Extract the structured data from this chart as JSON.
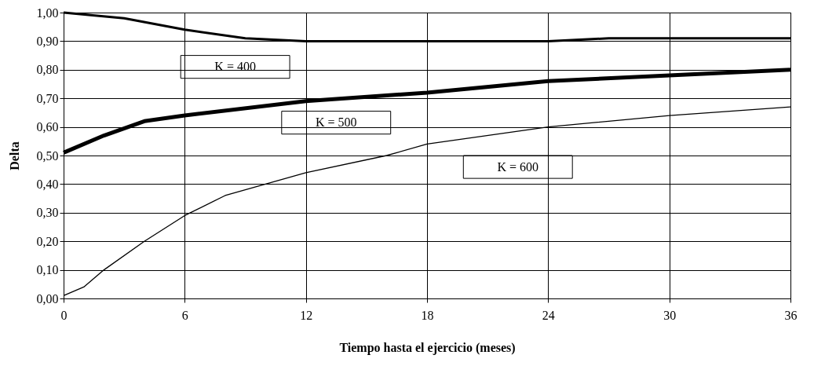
{
  "chart_data": {
    "type": "line",
    "xlabel": "Tiempo hasta el ejercicio (meses)",
    "ylabel": "Delta",
    "xlim": [
      0,
      36
    ],
    "xticks": [
      0,
      6,
      12,
      18,
      24,
      30,
      36
    ],
    "ylim": [
      0,
      1
    ],
    "yticks": [
      {
        "value": 0,
        "label": "0,00"
      },
      {
        "value": 0.1,
        "label": "0,10"
      },
      {
        "value": 0.2,
        "label": "0,20"
      },
      {
        "value": 0.3,
        "label": "0,30"
      },
      {
        "value": 0.4,
        "label": "0,40"
      },
      {
        "value": 0.5,
        "label": "0,50"
      },
      {
        "value": 0.6,
        "label": "0,60"
      },
      {
        "value": 0.7,
        "label": "0,70"
      },
      {
        "value": 0.8,
        "label": "0,80"
      },
      {
        "value": 0.9,
        "label": "0,90"
      },
      {
        "value": 1,
        "label": "1,00"
      }
    ],
    "grid": true,
    "marker": "none",
    "line_style": "solid",
    "series": [
      {
        "name": "K = 400",
        "color": "#000000",
        "x": [
          0,
          3,
          6,
          9,
          12,
          18,
          24,
          27,
          36
        ],
        "values": [
          1.0,
          0.98,
          0.94,
          0.91,
          0.9,
          0.9,
          0.9,
          0.91,
          0.91
        ]
      },
      {
        "name": "K = 500",
        "color": "#000000",
        "x": [
          0,
          2,
          4,
          6,
          12,
          18,
          24,
          30,
          36
        ],
        "values": [
          0.51,
          0.57,
          0.62,
          0.64,
          0.69,
          0.72,
          0.76,
          0.78,
          0.8
        ]
      },
      {
        "name": "K = 600",
        "color": "#000000",
        "x": [
          0,
          1,
          2,
          4,
          6,
          8,
          10,
          12,
          16,
          18,
          24,
          30,
          36
        ],
        "values": [
          0.01,
          0.04,
          0.1,
          0.2,
          0.29,
          0.36,
          0.4,
          0.44,
          0.5,
          0.54,
          0.6,
          0.64,
          0.67
        ]
      }
    ]
  }
}
